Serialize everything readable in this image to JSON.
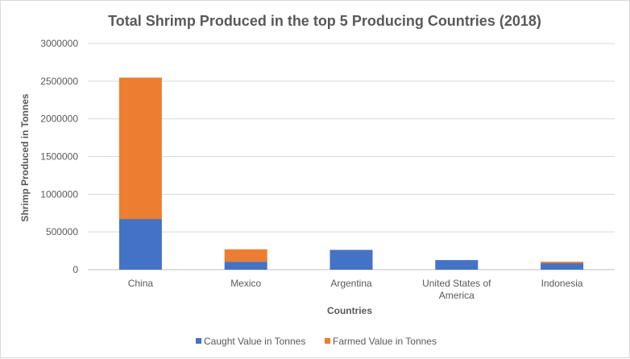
{
  "chart_data": {
    "type": "bar",
    "stacked": true,
    "title": "Total Shrimp Produced in the top 5 Producing Countries (2018)",
    "xlabel": "Countries",
    "ylabel": "Shrimp Produced in Tonnes",
    "categories": [
      "China",
      "Mexico",
      "Argentina",
      "United States of America",
      "Indonesia"
    ],
    "category_lines": [
      [
        "China"
      ],
      [
        "Mexico"
      ],
      [
        "Argentina"
      ],
      [
        "United States of",
        "America"
      ],
      [
        "Indonesia"
      ]
    ],
    "series": [
      {
        "name": "Caught Value in Tonnes",
        "color": "#4472c4",
        "values": [
          672000,
          105000,
          262000,
          127000,
          85000
        ]
      },
      {
        "name": "Farmed Value in Tonnes",
        "color": "#ed7d31",
        "values": [
          1875000,
          165000,
          0,
          0,
          20000
        ]
      }
    ],
    "ylim": [
      0,
      3000000
    ],
    "yticks": [
      0,
      500000,
      1000000,
      1500000,
      2000000,
      2500000,
      3000000
    ],
    "ytick_labels": [
      "0",
      "500000",
      "1000000",
      "1500000",
      "2000000",
      "2500000",
      "3000000"
    ],
    "grid": true,
    "legend": "bottom"
  }
}
